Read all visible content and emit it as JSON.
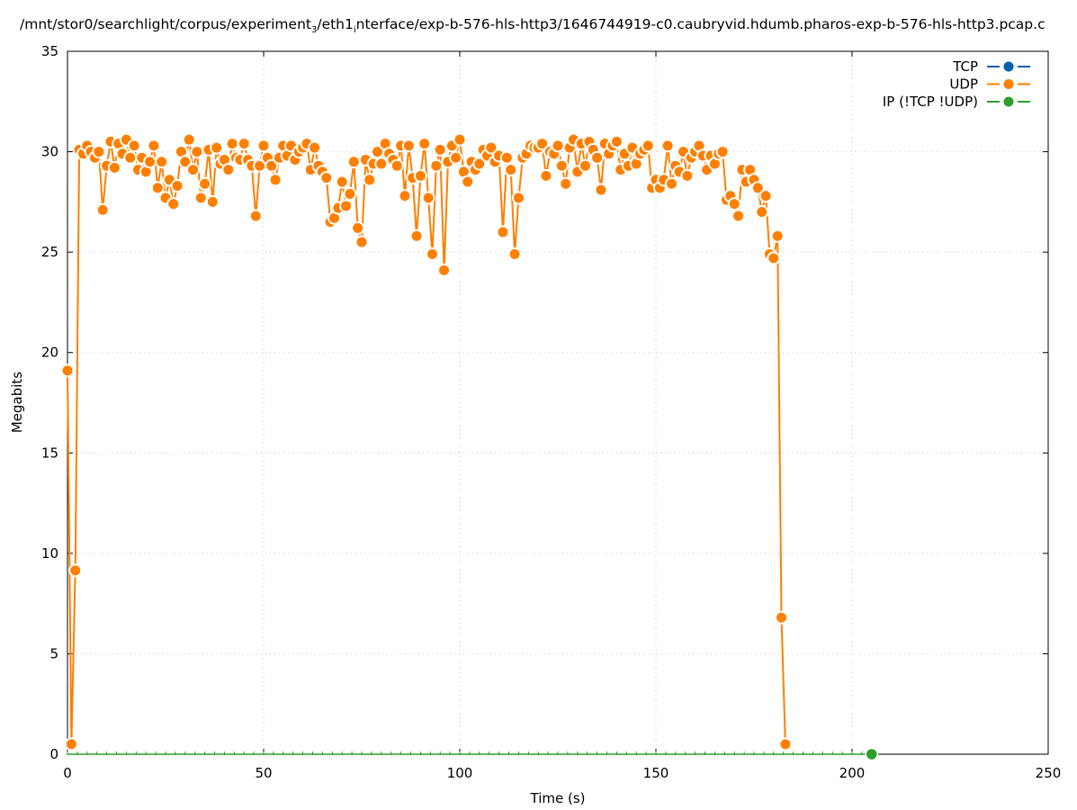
{
  "chart_data": {
    "type": "line",
    "title_parts": [
      "/mnt/stor0/searchlight/corpus/experiment",
      "3",
      "/eth1",
      "i",
      "nterface/exp-b-576-hls-http3/1646744919-c0.caubryvid.hdumb.pharos-exp-b-576-hls-http3.pcap.c"
    ],
    "xlabel": "Time (s)",
    "ylabel": "Megabits",
    "xlim": [
      0,
      250
    ],
    "ylim": [
      0,
      35
    ],
    "xticks": [
      0,
      50,
      100,
      150,
      200,
      250
    ],
    "yticks": [
      0,
      5,
      10,
      15,
      20,
      25,
      30,
      35
    ],
    "grid": true,
    "legend_position": "top-right",
    "series": [
      {
        "name": "TCP",
        "color": "#0060ad",
        "x": [],
        "y": []
      },
      {
        "name": "UDP",
        "color": "#ff7f00",
        "x_start": 0,
        "x_step": 1,
        "y": [
          19.1,
          0.5,
          9.15,
          30.1,
          29.9,
          30.3,
          30.0,
          29.7,
          30.0,
          27.1,
          29.3,
          30.5,
          29.2,
          30.4,
          29.9,
          30.6,
          29.7,
          30.3,
          29.1,
          29.7,
          29.0,
          29.5,
          30.3,
          28.2,
          29.5,
          27.7,
          28.6,
          27.4,
          28.3,
          30.0,
          29.5,
          30.6,
          29.1,
          30.0,
          27.7,
          28.4,
          30.1,
          27.5,
          30.2,
          29.4,
          29.6,
          29.1,
          30.4,
          29.7,
          29.6,
          30.4,
          29.6,
          29.3,
          26.8,
          29.3,
          30.3,
          29.7,
          29.3,
          28.6,
          29.7,
          30.3,
          29.8,
          30.3,
          29.6,
          30.0,
          30.2,
          30.4,
          29.1,
          30.2,
          29.3,
          29.0,
          28.7,
          26.5,
          26.7,
          27.2,
          28.5,
          27.3,
          27.9,
          29.5,
          26.2,
          25.5,
          29.6,
          28.6,
          29.4,
          30.0,
          29.4,
          30.4,
          29.9,
          29.6,
          29.3,
          30.3,
          27.8,
          30.3,
          28.7,
          25.8,
          28.8,
          30.4,
          27.7,
          24.9,
          29.3,
          30.1,
          24.1,
          29.5,
          30.3,
          29.7,
          30.6,
          29.0,
          28.5,
          29.5,
          29.1,
          29.4,
          30.1,
          29.8,
          30.2,
          29.5,
          29.8,
          26.0,
          29.7,
          29.1,
          24.9,
          27.7,
          29.7,
          29.9,
          30.3,
          30.2,
          30.2,
          30.4,
          28.8,
          30.0,
          29.9,
          30.3,
          29.3,
          28.4,
          30.2,
          30.6,
          29.0,
          30.4,
          29.3,
          30.5,
          30.1,
          29.7,
          28.1,
          30.4,
          29.9,
          30.3,
          30.5,
          29.1,
          29.9,
          29.3,
          30.2,
          29.4,
          29.9,
          30.1,
          30.3,
          28.2,
          28.6,
          28.2,
          28.6,
          30.3,
          28.4,
          29.3,
          29.0,
          30.0,
          28.8,
          29.7,
          30.0,
          30.3,
          29.8,
          29.1,
          29.8,
          29.4,
          29.9,
          30.0,
          27.6,
          27.8,
          27.4,
          26.8,
          29.1,
          28.5,
          29.1,
          28.6,
          28.2,
          27.0,
          27.8,
          24.9,
          24.7,
          25.8,
          6.8,
          0.5
        ]
      },
      {
        "name": "IP (!TCP  !UDP)",
        "color": "#2ca02c",
        "x": [
          0,
          205
        ],
        "y": [
          0,
          0
        ]
      }
    ]
  }
}
